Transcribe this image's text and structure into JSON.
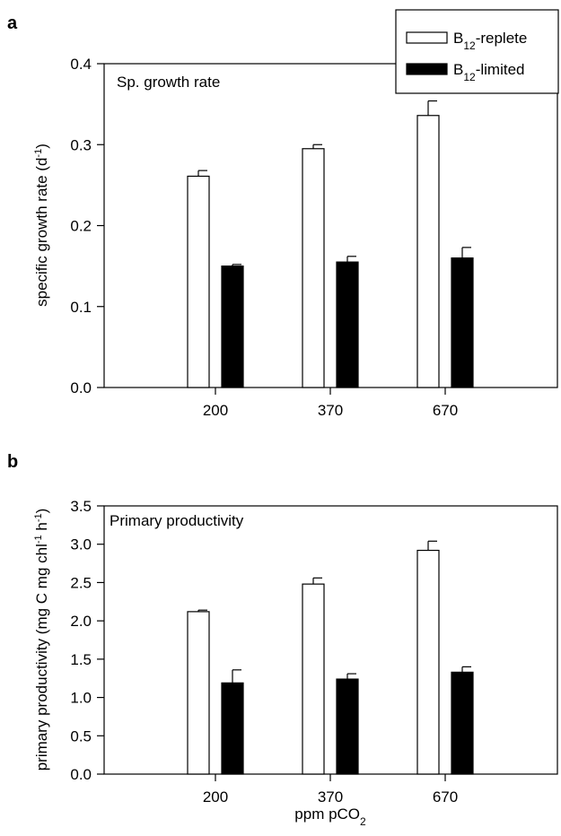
{
  "legend": {
    "replete": {
      "prefix": "B",
      "sub": "12",
      "suffix": "-replete"
    },
    "limited": {
      "prefix": "B",
      "sub": "12",
      "suffix": "-limited"
    }
  },
  "chart_data": [
    {
      "type": "bar",
      "panel_label": "a",
      "title": "Sp. growth rate",
      "ylabel": {
        "main": "specific growth rate (d",
        "sup": "-1",
        "tail": ")"
      },
      "xlabel": "",
      "categories": [
        "200",
        "370",
        "670"
      ],
      "ylim": [
        0,
        0.4
      ],
      "yticks": [
        "0.0",
        "0.1",
        "0.2",
        "0.3",
        "0.4"
      ],
      "series": [
        {
          "name": "B12-replete",
          "color": "#ffffff",
          "values": [
            0.261,
            0.295,
            0.336
          ],
          "errors": [
            0.007,
            0.005,
            0.018
          ]
        },
        {
          "name": "B12-limited",
          "color": "#000000",
          "values": [
            0.15,
            0.155,
            0.16
          ],
          "errors": [
            0.002,
            0.007,
            0.013
          ]
        }
      ],
      "grid": false,
      "legend_position": "top-right"
    },
    {
      "type": "bar",
      "panel_label": "b",
      "title": "Primary productivity",
      "ylabel": {
        "p1": "primary productivity (mg C mg chl",
        "s1": "-1",
        "p2": " h",
        "s2": "-1",
        "p3": ")"
      },
      "xlabel": {
        "main": "ppm pCO",
        "sub": "2"
      },
      "categories": [
        "200",
        "370",
        "670"
      ],
      "ylim": [
        0,
        3.5
      ],
      "yticks": [
        "0.0",
        "0.5",
        "1.0",
        "1.5",
        "2.0",
        "2.5",
        "3.0",
        "3.5"
      ],
      "series": [
        {
          "name": "B12-replete",
          "color": "#ffffff",
          "values": [
            2.12,
            2.48,
            2.92
          ],
          "errors": [
            0.02,
            0.08,
            0.12
          ]
        },
        {
          "name": "B12-limited",
          "color": "#000000",
          "values": [
            1.19,
            1.24,
            1.33
          ],
          "errors": [
            0.17,
            0.07,
            0.07
          ]
        }
      ],
      "grid": false
    }
  ]
}
